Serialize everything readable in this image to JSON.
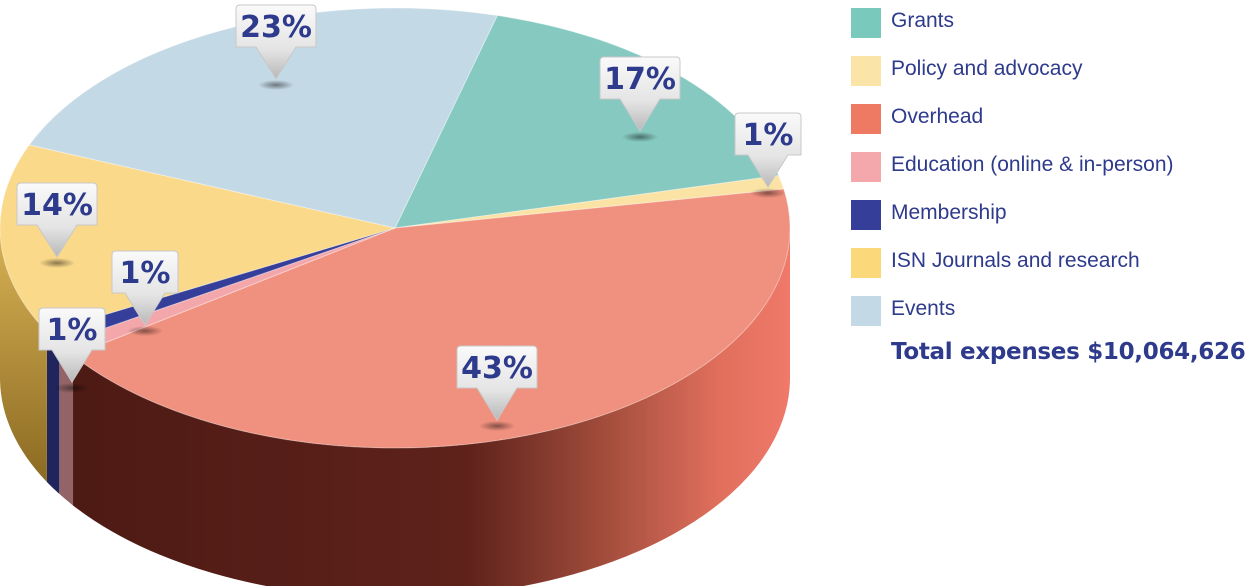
{
  "chart_data": {
    "type": "pie",
    "total_label": "Total expenses $10,064,626",
    "slices": [
      {
        "name": "Grants",
        "value": 17,
        "label": "17%",
        "color": "#85c9c0"
      },
      {
        "name": "Policy and advocacy",
        "value": 1,
        "label": "1%",
        "color": "#fbe3a6"
      },
      {
        "name": "Overhead",
        "value": 43,
        "label": "43%",
        "color": "#f0907e"
      },
      {
        "name": "Education (online & in-person)",
        "value": 1,
        "label": "1%",
        "color": "#f4a7ab"
      },
      {
        "name": "Membership",
        "value": 1,
        "label": "1%",
        "color": "#353e99"
      },
      {
        "name": "ISN Journals and research",
        "value": 14,
        "label": "14%",
        "color": "#fad98a"
      },
      {
        "name": "Events",
        "value": 23,
        "label": "23%",
        "color": "#c4d9e6"
      }
    ]
  },
  "legend": [
    {
      "label": "Grants",
      "color": "#79c9bc"
    },
    {
      "label": "Policy and advocacy",
      "color": "#fae4a8"
    },
    {
      "label": "Overhead",
      "color": "#ef7a64"
    },
    {
      "label": "Education (online & in-person)",
      "color": "#f4a8ac"
    },
    {
      "label": "Membership",
      "color": "#353e99"
    },
    {
      "label": "ISN Journals and research",
      "color": "#fbd97b"
    },
    {
      "label": "Events",
      "color": "#c4d9e6"
    }
  ]
}
